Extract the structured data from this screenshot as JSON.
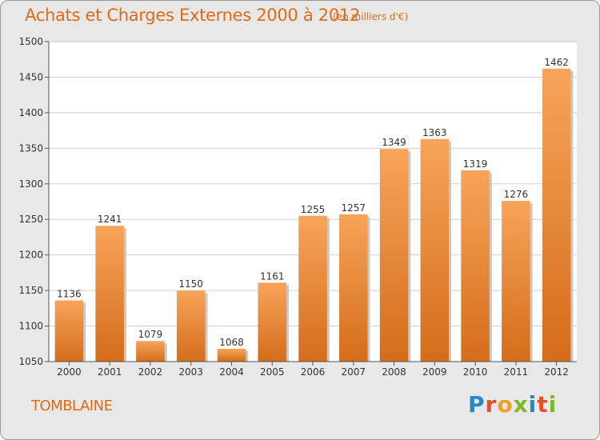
{
  "header": {
    "title": "Achats et Charges Externes 2000 à 2012",
    "unit": "(en milliers d'€)"
  },
  "footer": {
    "town": "TOMBLAINE",
    "brand_letters": [
      "P",
      "r",
      "o",
      "x",
      "i",
      "t",
      "i"
    ],
    "brand_colors": [
      "#2a86c8",
      "#e8502a",
      "#f0a020",
      "#7cb928",
      "#2a86c8",
      "#e8502a",
      "#7cb928"
    ]
  },
  "colors": {
    "accent": "#e06b16",
    "bar_light": "#f7a45a",
    "bar_dark": "#d46d1a",
    "plot_bg": "#ffffff"
  },
  "chart_data": {
    "type": "bar",
    "categories": [
      "2000",
      "2001",
      "2002",
      "2003",
      "2004",
      "2005",
      "2006",
      "2007",
      "2008",
      "2009",
      "2010",
      "2011",
      "2012"
    ],
    "values": [
      1136,
      1241,
      1079,
      1150,
      1068,
      1161,
      1255,
      1257,
      1349,
      1363,
      1319,
      1276,
      1462
    ],
    "ylim": [
      1050,
      1500
    ],
    "yticks": [
      1050,
      1100,
      1150,
      1200,
      1250,
      1300,
      1350,
      1400,
      1450,
      1500
    ],
    "grid": true
  }
}
